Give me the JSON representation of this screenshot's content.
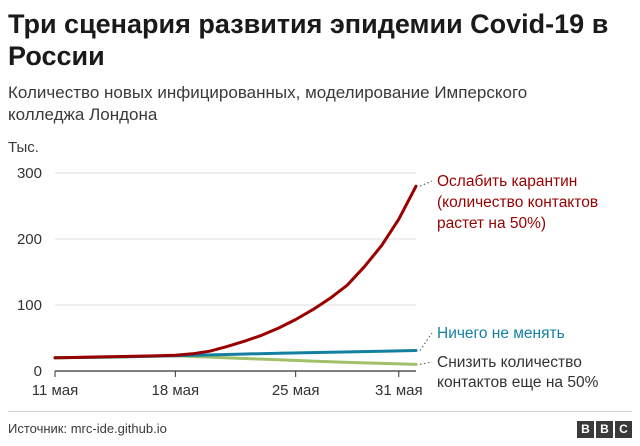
{
  "title": "Три сценария развития эпидемии Covid-19 в России",
  "subtitle": "Количество новых инфицированных, моделирование Имперского колледжа Лондона",
  "unit_label": "Тыс.",
  "source": "Источник: mrc-ide.github.io",
  "logo": [
    "B",
    "B",
    "C"
  ],
  "colors": {
    "relax": "#990000",
    "nochange": "#1380a1",
    "reduce": "#a2c06a",
    "grid": "#dddddd",
    "axis": "#333333"
  },
  "chart_data": {
    "type": "line",
    "title": "Три сценария развития эпидемии Covid-19 в России",
    "ylabel": "Тыс.",
    "ylim": [
      0,
      300
    ],
    "yticks": [
      0,
      100,
      200,
      300
    ],
    "xlim": [
      11,
      32
    ],
    "xticks": [
      {
        "value": 11,
        "label": "11 мая"
      },
      {
        "value": 18,
        "label": "18 мая"
      },
      {
        "value": 25,
        "label": "25 мая"
      },
      {
        "value": 31,
        "label": "31 мая"
      }
    ],
    "grid": true,
    "series": [
      {
        "name": "Ослабить карантин (количество контактов растет на 50%)",
        "label_lines": [
          "Ослабить карантин",
          "(количество контактов",
          "растет на 50%)"
        ],
        "color": "#990000",
        "x": [
          11,
          12,
          13,
          14,
          15,
          16,
          17,
          18,
          19,
          20,
          21,
          22,
          23,
          24,
          25,
          26,
          27,
          28,
          29,
          30,
          31,
          32
        ],
        "y": [
          20,
          20.5,
          21,
          21.5,
          22,
          22.5,
          23,
          24,
          26,
          30,
          37,
          45,
          54,
          65,
          78,
          93,
          110,
          130,
          158,
          190,
          230,
          280
        ]
      },
      {
        "name": "Ничего не менять",
        "label_lines": [
          "Ничего не менять"
        ],
        "color": "#1380a1",
        "x": [
          11,
          14,
          18,
          21,
          24,
          27,
          30,
          32
        ],
        "y": [
          20,
          21,
          23,
          25,
          27,
          28.5,
          30,
          31
        ]
      },
      {
        "name": "Снизить количество контактов еще на 50%",
        "label_lines": [
          "Снизить количество",
          "контактов еще на 50%"
        ],
        "color": "#a2c06a",
        "x": [
          11,
          14,
          18,
          20,
          22,
          24,
          26,
          28,
          30,
          32
        ],
        "y": [
          20,
          21,
          23,
          21,
          19,
          17,
          15,
          13,
          11.5,
          10
        ]
      }
    ]
  }
}
